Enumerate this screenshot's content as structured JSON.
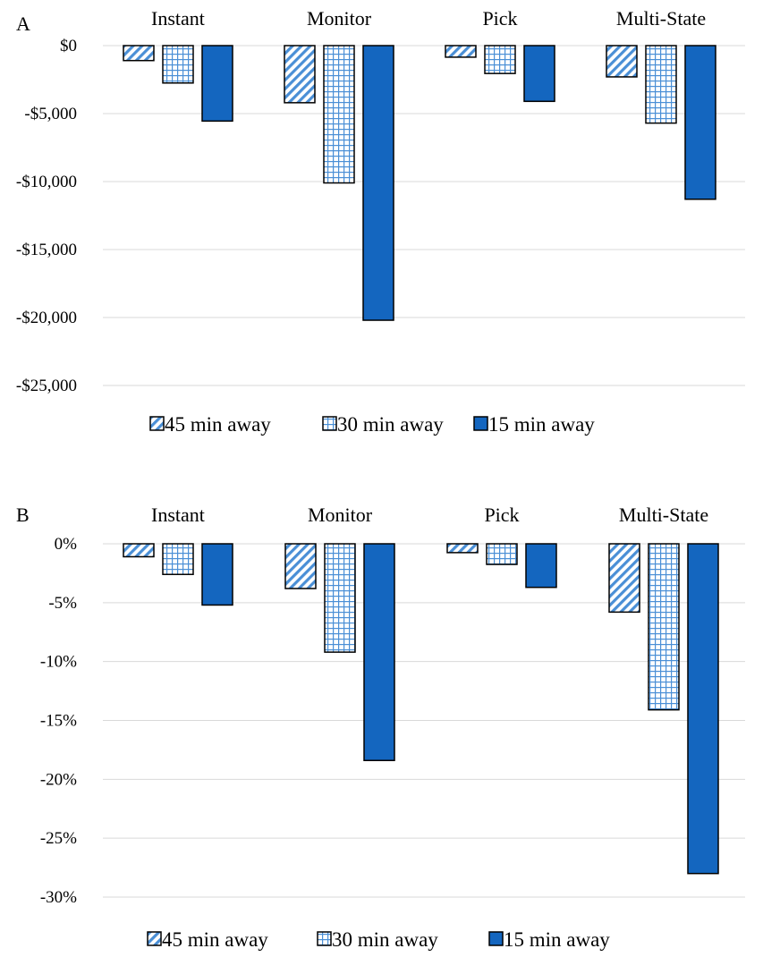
{
  "chart_data": [
    {
      "type": "bar",
      "panel_label": "A",
      "categories": [
        "Instant",
        "Monitor",
        "Pick",
        "Multi-State"
      ],
      "series": [
        {
          "name": "45 min away",
          "values": [
            -1100,
            -4200,
            -850,
            -2300
          ]
        },
        {
          "name": "30 min away",
          "values": [
            -2750,
            -10100,
            -2050,
            -5700
          ]
        },
        {
          "name": "15 min away",
          "values": [
            -5550,
            -20200,
            -4100,
            -11300
          ]
        }
      ],
      "yticks": [
        "$0",
        "-$5,000",
        "-$10,000",
        "-$15,000",
        "-$20,000",
        "-$25,000"
      ],
      "ylim": [
        -25000,
        0
      ],
      "category_labels_position": "top",
      "legend_position": "bottom",
      "grid": true
    },
    {
      "type": "bar",
      "panel_label": "B",
      "categories": [
        "Instant",
        "Monitor",
        "Pick",
        "Multi-State"
      ],
      "series": [
        {
          "name": "45 min away",
          "values": [
            -1.1,
            -3.8,
            -0.75,
            -5.8
          ]
        },
        {
          "name": "30 min away",
          "values": [
            -2.6,
            -9.2,
            -1.75,
            -14.1
          ]
        },
        {
          "name": "15 min away",
          "values": [
            -5.2,
            -18.4,
            -3.7,
            -28.0
          ]
        }
      ],
      "yticks": [
        "0%",
        "-5%",
        "-10%",
        "-15%",
        "-20%",
        "-25%",
        "-30%"
      ],
      "ylim": [
        -30,
        0
      ],
      "category_labels_position": "top",
      "legend_position": "bottom",
      "grid": true
    }
  ],
  "colors": {
    "stripe": "#4a8fd6",
    "grid_pattern": "#4a8fd6",
    "solid": "#1466bf",
    "gridline": "#d9d9d9"
  },
  "series_styles": [
    "diagonal-stripes",
    "grid-checks",
    "solid"
  ]
}
